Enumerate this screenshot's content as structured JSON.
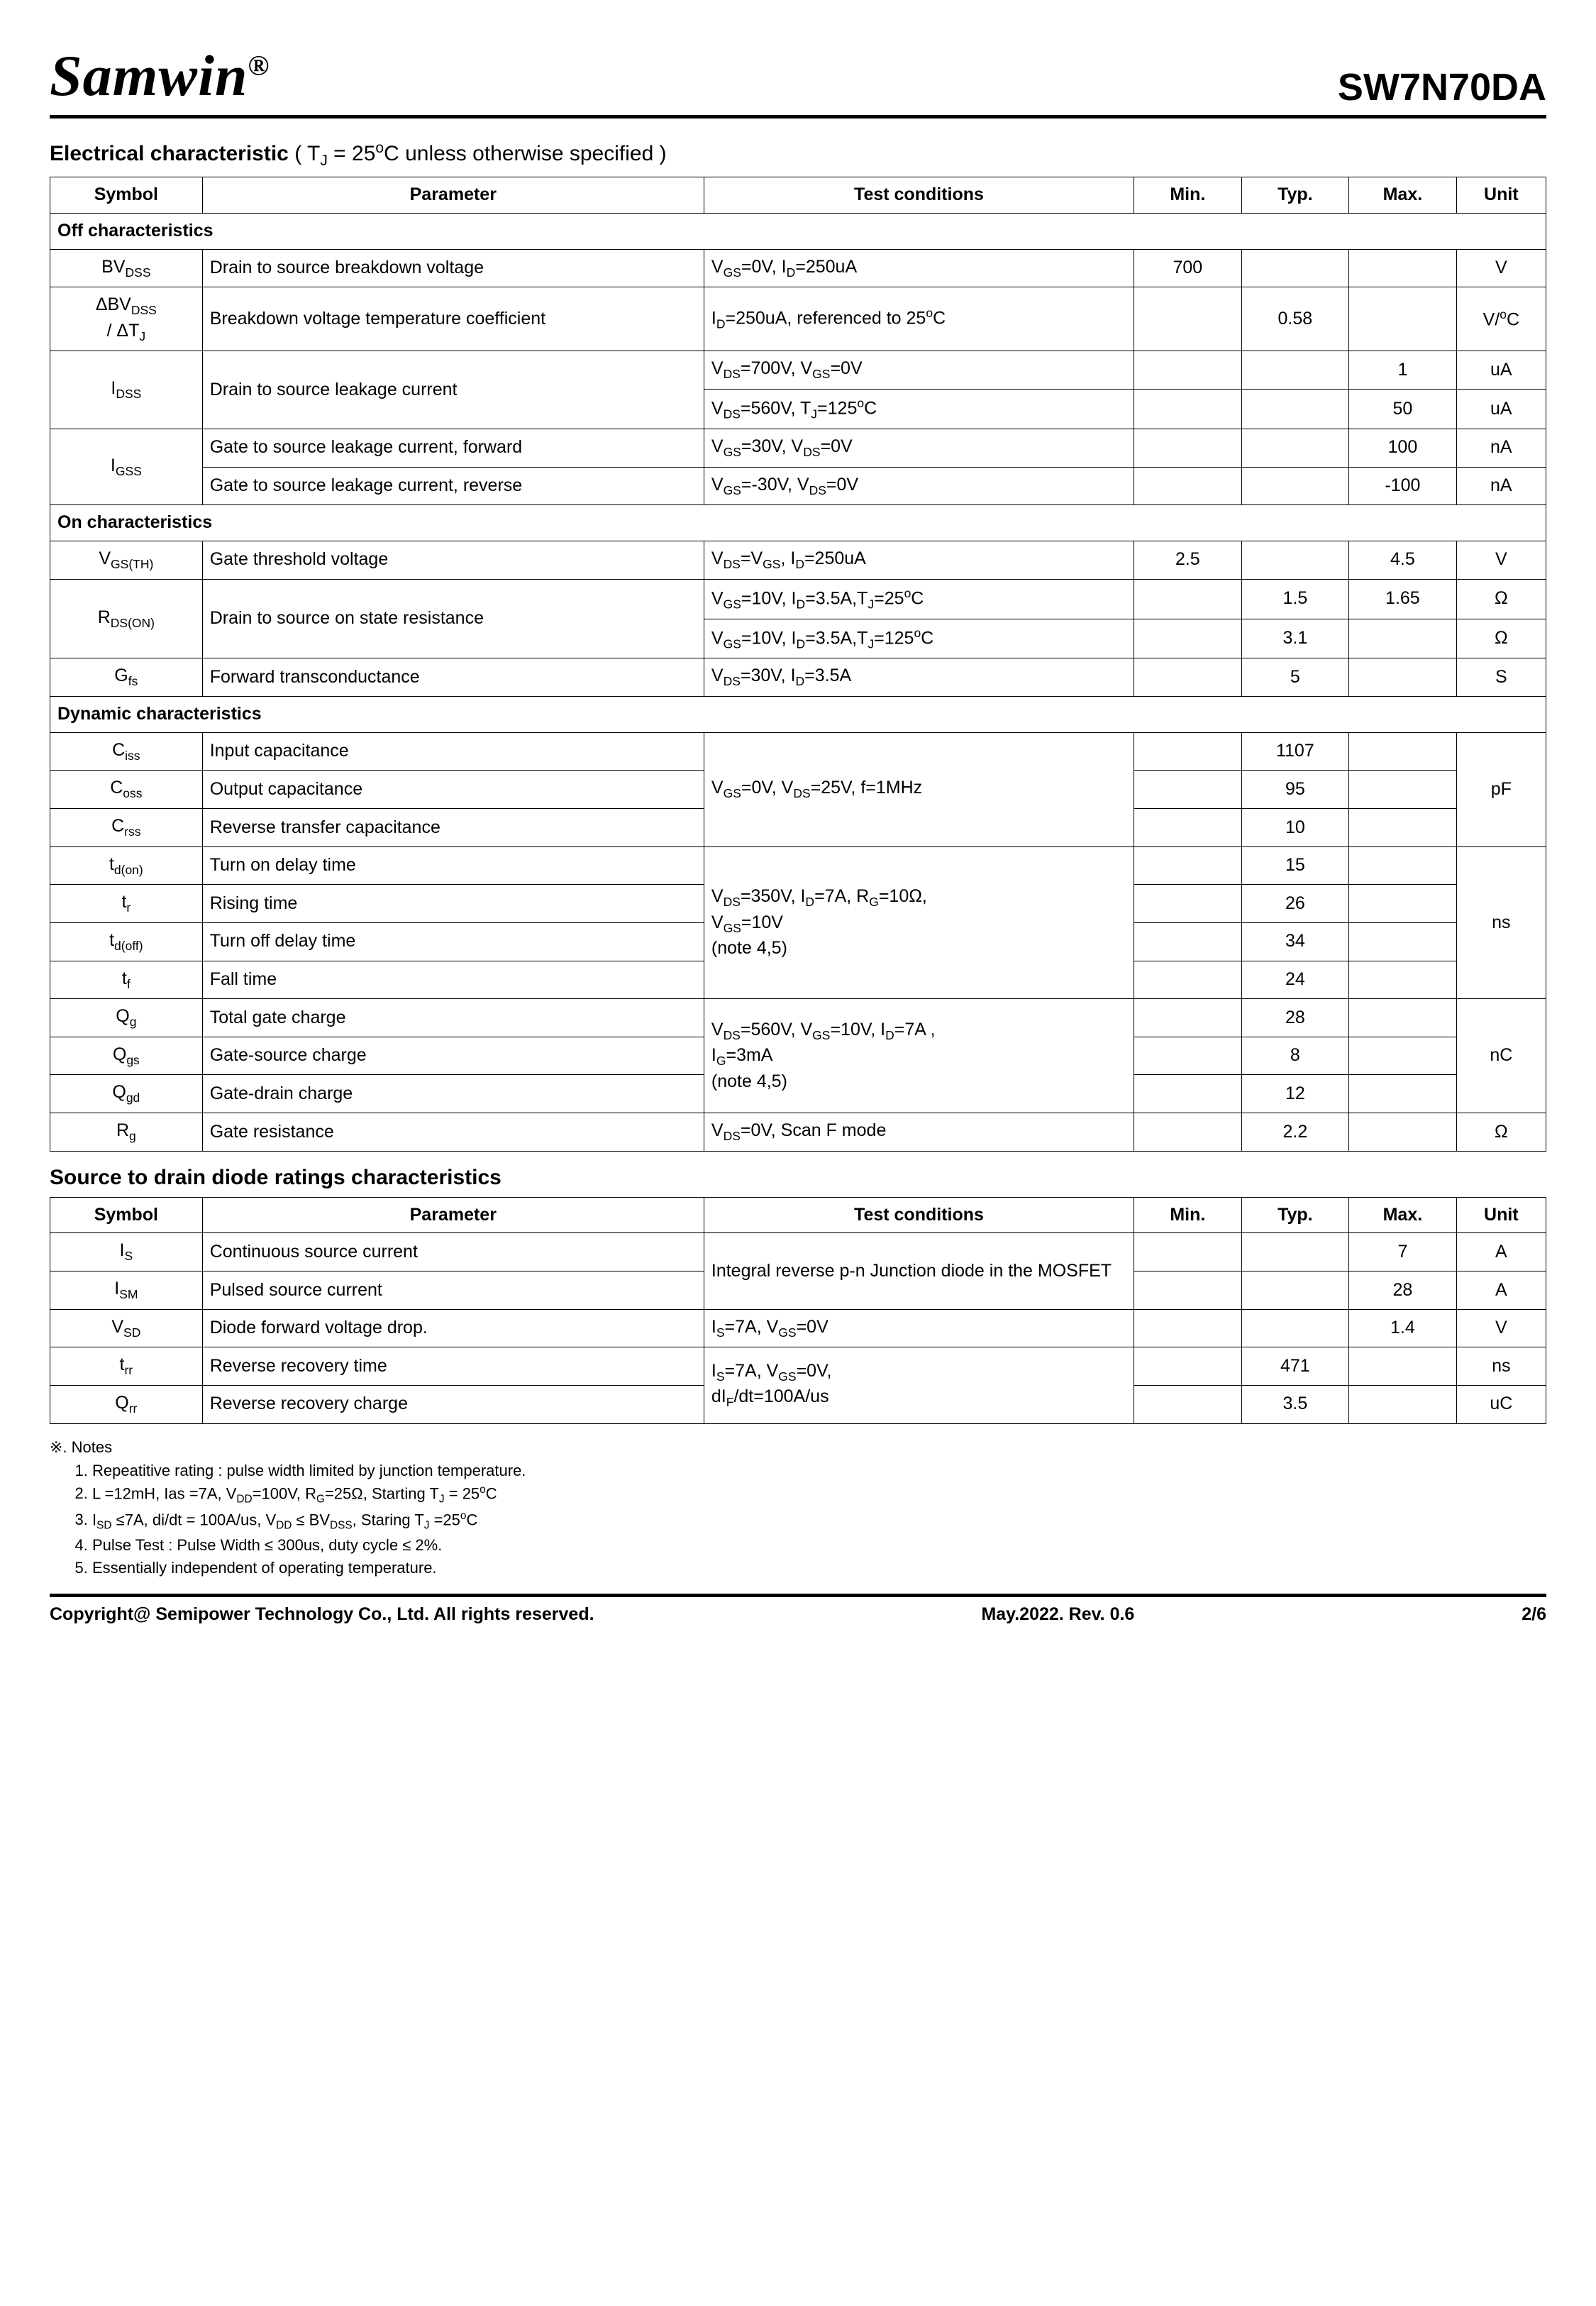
{
  "header": {
    "brand": "Samwin",
    "reg": "®",
    "part_number": "SW7N70DA"
  },
  "section1": {
    "title_bold": "Electrical characteristic",
    "title_norm": " ( T_J = 25°C unless otherwise specified )",
    "columns": [
      "Symbol",
      "Parameter",
      "Test conditions",
      "Min.",
      "Typ.",
      "Max.",
      "Unit"
    ],
    "sub_off": "Off characteristics",
    "sub_on": "On characteristics",
    "sub_dyn": "Dynamic characteristics",
    "rows_off": [
      {
        "sym": "BV_DSS",
        "param": "Drain to source breakdown voltage",
        "cond": "V_GS=0V, I_D=250uA",
        "min": "700",
        "typ": "",
        "max": "",
        "unit": "V"
      },
      {
        "sym": "ΔBV_DSS / ΔT_J",
        "param": "Breakdown voltage temperature coefficient",
        "cond": "I_D=250uA, referenced to 25°C",
        "min": "",
        "typ": "0.58",
        "max": "",
        "unit": "V/°C"
      }
    ],
    "idss": {
      "sym": "I_DSS",
      "param": "Drain to source leakage current",
      "r1": {
        "cond": "V_DS=700V, V_GS=0V",
        "min": "",
        "typ": "",
        "max": "1",
        "unit": "uA"
      },
      "r2": {
        "cond": "V_DS=560V, T_J=125°C",
        "min": "",
        "typ": "",
        "max": "50",
        "unit": "uA"
      }
    },
    "igss": {
      "sym": "I_GSS",
      "r1": {
        "param": "Gate to source leakage current, forward",
        "cond": "V_GS=30V, V_DS=0V",
        "min": "",
        "typ": "",
        "max": "100",
        "unit": "nA"
      },
      "r2": {
        "param": "Gate to source leakage current, reverse",
        "cond": "V_GS=-30V, V_DS=0V",
        "min": "",
        "typ": "",
        "max": "-100",
        "unit": "nA"
      }
    },
    "rows_on": {
      "vgsth": {
        "sym": "V_GS(TH)",
        "param": "Gate threshold voltage",
        "cond": "V_DS=V_GS, I_D=250uA",
        "min": "2.5",
        "typ": "",
        "max": "4.5",
        "unit": "V"
      },
      "rdson": {
        "sym": "R_DS(ON)",
        "param": "Drain to source on state resistance",
        "r1": {
          "cond": "V_GS=10V, I_D=3.5A,T_J=25°C",
          "min": "",
          "typ": "1.5",
          "max": "1.65",
          "unit": "Ω"
        },
        "r2": {
          "cond": "V_GS=10V, I_D=3.5A,T_J=125°C",
          "min": "",
          "typ": "3.1",
          "max": "",
          "unit": "Ω"
        }
      },
      "gfs": {
        "sym": "G_fs",
        "param": "Forward transconductance",
        "cond": "V_DS=30V, I_D=3.5A",
        "min": "",
        "typ": "5",
        "max": "",
        "unit": "S"
      }
    },
    "dyn": {
      "cap_cond": "V_GS=0V, V_DS=25V, f=1MHz",
      "cap_unit": "pF",
      "ciss": {
        "sym": "C_iss",
        "param": "Input capacitance",
        "typ": "1107"
      },
      "coss": {
        "sym": "C_oss",
        "param": "Output capacitance",
        "typ": "95"
      },
      "crss": {
        "sym": "C_rss",
        "param": "Reverse transfer capacitance",
        "typ": "10"
      },
      "sw_cond": "V_DS=350V, I_D=7A, R_G=10Ω, V_GS=10V\n(note 4,5)",
      "sw_unit": "ns",
      "tdon": {
        "sym": "t_d(on)",
        "param": "Turn on delay time",
        "typ": "15"
      },
      "tr": {
        "sym": "t_r",
        "param": "Rising time",
        "typ": "26"
      },
      "tdoff": {
        "sym": "t_d(off)",
        "param": "Turn off delay time",
        "typ": "34"
      },
      "tf": {
        "sym": "t_f",
        "param": "Fall time",
        "typ": "24"
      },
      "q_cond": "V_DS=560V, V_GS=10V, I_D=7A , I_G=3mA\n(note 4,5)",
      "q_unit": "nC",
      "qg": {
        "sym": "Q_g",
        "param": "Total gate charge",
        "typ": "28"
      },
      "qgs": {
        "sym": "Q_gs",
        "param": "Gate-source charge",
        "typ": "8"
      },
      "qgd": {
        "sym": "Q_gd",
        "param": "Gate-drain charge",
        "typ": "12"
      },
      "rg": {
        "sym": "R_g",
        "param": "Gate resistance",
        "cond": "V_DS=0V, Scan F mode",
        "typ": "2.2",
        "unit": "Ω"
      }
    }
  },
  "section2": {
    "title": "Source to drain diode ratings characteristics",
    "columns": [
      "Symbol",
      "Parameter",
      "Test conditions",
      "Min.",
      "Typ.",
      "Max.",
      "Unit"
    ],
    "body_cond": "Integral reverse p-n Junction diode in the MOSFET",
    "is": {
      "sym": "I_S",
      "param": "Continuous source current",
      "min": "",
      "typ": "",
      "max": "7",
      "unit": "A"
    },
    "ism": {
      "sym": "I_SM",
      "param": "Pulsed source current",
      "min": "",
      "typ": "",
      "max": "28",
      "unit": "A"
    },
    "vsd": {
      "sym": "V_SD",
      "param": "Diode forward voltage drop.",
      "cond": "I_S=7A, V_GS=0V",
      "min": "",
      "typ": "",
      "max": "1.4",
      "unit": "V"
    },
    "rr_cond": "I_S=7A, V_GS=0V,\ndI_F/dt=100A/us",
    "trr": {
      "sym": "t_rr",
      "param": "Reverse recovery time",
      "min": "",
      "typ": "471",
      "max": "",
      "unit": "ns"
    },
    "qrr": {
      "sym": "Q_rr",
      "param": "Reverse recovery charge",
      "min": "",
      "typ": "3.5",
      "max": "",
      "unit": "uC"
    }
  },
  "notes": {
    "title": "※. Notes",
    "items": [
      "Repeatitive rating : pulse width limited by junction temperature.",
      "L =12mH, Ias =7A, V_DD=100V, R_G=25Ω, Starting T_J = 25°C",
      "I_SD ≤7A, di/dt = 100A/us, V_DD ≤ BV_DSS, Staring T_J =25°C",
      "Pulse Test : Pulse Width ≤ 300us, duty cycle ≤ 2%.",
      "Essentially independent of operating temperature."
    ]
  },
  "footer": {
    "left": "Copyright@ Semipower Technology Co., Ltd. All rights reserved.",
    "mid": "May.2022. Rev. 0.6",
    "right": "2/6"
  }
}
